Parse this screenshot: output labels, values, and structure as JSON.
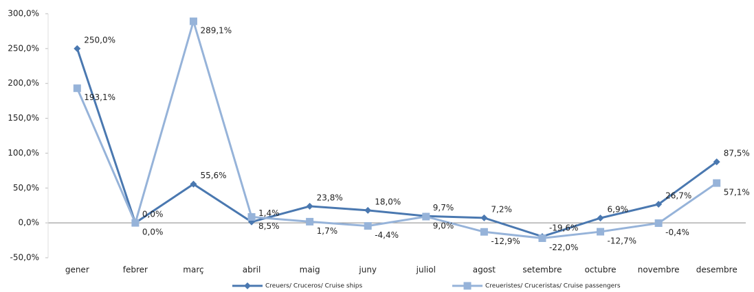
{
  "chart_data": {
    "type": "line",
    "categories": [
      "gener",
      "febrer",
      "març",
      "abril",
      "maig",
      "juny",
      "juliol",
      "agost",
      "setembre",
      "octubre",
      "novembre",
      "desembre"
    ],
    "series": [
      {
        "name": "Creuers/ Cruceros/ Cruise ships",
        "color": "#4a78b0",
        "marker": "diamond",
        "values": [
          250.0,
          0.0,
          55.6,
          1.4,
          23.8,
          18.0,
          9.7,
          7.2,
          -19.6,
          6.9,
          26.7,
          87.5
        ],
        "value_labels": [
          "250,0%",
          "0,0%",
          "55,6%",
          "1,4%",
          "23,8%",
          "18,0%",
          "9,7%",
          "7,2%",
          "-19,6%",
          "6,9%",
          "26,7%",
          "87,5%"
        ]
      },
      {
        "name": "Creueristes/ Cruceristas/ Cruise passengers",
        "color": "#96b3d9",
        "marker": "square",
        "values": [
          193.1,
          0.0,
          289.1,
          8.5,
          1.7,
          -4.4,
          9.0,
          -12.9,
          -22.0,
          -12.7,
          -0.4,
          57.1
        ],
        "value_labels": [
          "193,1%",
          "0,0%",
          "289,1%",
          "8,5%",
          "1,7%",
          "-4,4%",
          "9,0%",
          "-12,9%",
          "-22,0%",
          "-12,7%",
          "-0,4%",
          "57,1%"
        ]
      }
    ],
    "ylim": [
      -50,
      300
    ],
    "yticks": [
      {
        "value": -50,
        "label": "-50,0%"
      },
      {
        "value": 0,
        "label": "0,0%"
      },
      {
        "value": 50,
        "label": "50,0%"
      },
      {
        "value": 100,
        "label": "100,0%"
      },
      {
        "value": 150,
        "label": "150,0%"
      },
      {
        "value": 200,
        "label": "200,0%"
      },
      {
        "value": 250,
        "label": "250,0%"
      },
      {
        "value": 300,
        "label": "300,0%"
      }
    ],
    "grid": false,
    "legend": "bottom"
  }
}
